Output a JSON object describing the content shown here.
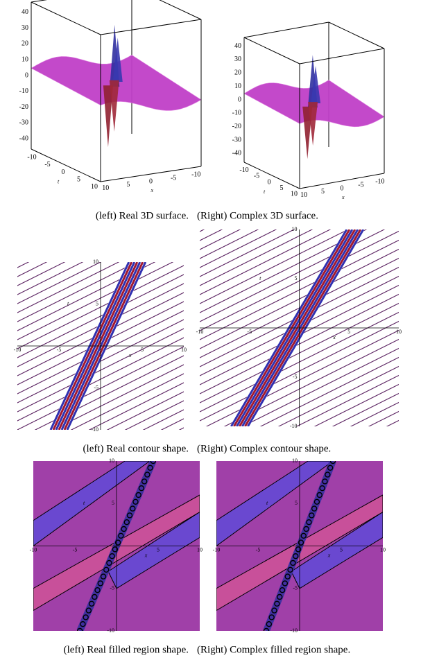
{
  "rows": [
    {
      "panels": [
        {
          "caption": "(left) Real 3D surface.",
          "z_ticks": [
            40,
            30,
            20,
            10,
            0,
            -10,
            -20,
            -30,
            -40
          ],
          "t_ticks": [
            -10,
            -5,
            0,
            5,
            10
          ],
          "x_ticks": [
            10,
            5,
            0,
            -5,
            -10
          ],
          "t_label": "t",
          "x_label": "x"
        },
        {
          "caption": "(Right) Complex 3D surface.",
          "z_ticks": [
            40,
            30,
            20,
            10,
            0,
            -10,
            -20,
            -30,
            -40
          ],
          "t_ticks": [
            -10,
            -5,
            0,
            5,
            10
          ],
          "x_ticks": [
            10,
            5,
            0,
            -5,
            -10
          ],
          "t_label": "t",
          "x_label": "x"
        }
      ]
    },
    {
      "panels": [
        {
          "caption": "(left) Real contour shape.",
          "x_ticks": [
            -10,
            -5,
            5,
            10
          ],
          "t_ticks": [
            10,
            5,
            -5,
            -10
          ],
          "x_label": "x",
          "t_label": "t"
        },
        {
          "caption": "(Right) Complex contour shape.",
          "x_ticks": [
            -10,
            -5,
            5,
            10
          ],
          "t_ticks": [
            10,
            5,
            -5,
            -10
          ],
          "x_label": "x",
          "t_label": "t"
        }
      ]
    },
    {
      "panels": [
        {
          "caption": "(left) Real filled region shape.",
          "x_ticks": [
            -10,
            -5,
            5,
            10
          ],
          "t_ticks": [
            10,
            5,
            -5,
            -10
          ],
          "x_label": "x",
          "t_label": "t"
        },
        {
          "caption": "(Right) Complex filled region shape.",
          "x_ticks": [
            -10,
            -5,
            5,
            10
          ],
          "t_ticks": [
            10,
            5,
            -5,
            -10
          ],
          "x_label": "x",
          "t_label": "t"
        }
      ]
    }
  ]
}
